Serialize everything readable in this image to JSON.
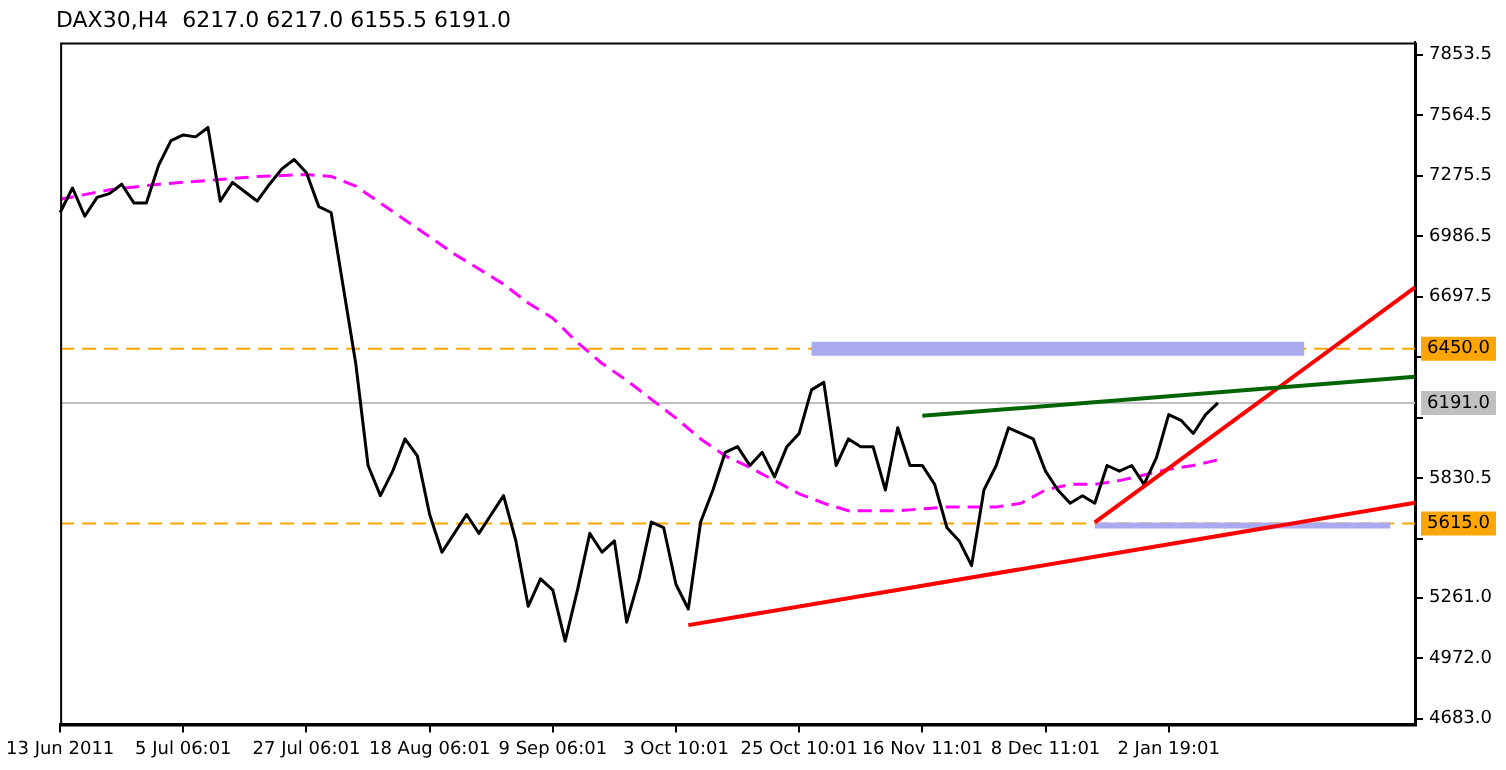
{
  "chart_data": {
    "type": "line",
    "title": "DAX30,H4  6217.0 6217.0 6155.5 6191.0",
    "categories": [
      "13 Jun 2011",
      null,
      null,
      null,
      null,
      null,
      null,
      null,
      null,
      null,
      "5 Jul 06:01",
      null,
      null,
      null,
      null,
      null,
      null,
      null,
      null,
      null,
      "27 Jul 06:01",
      null,
      null,
      null,
      null,
      null,
      null,
      null,
      null,
      null,
      "18 Aug 06:01",
      null,
      null,
      null,
      null,
      null,
      null,
      null,
      null,
      null,
      "9 Sep 06:01",
      null,
      null,
      null,
      null,
      null,
      null,
      null,
      null,
      null,
      "3 Oct 10:01",
      null,
      null,
      null,
      null,
      null,
      null,
      null,
      null,
      null,
      "25 Oct 10:01",
      null,
      null,
      null,
      null,
      null,
      null,
      null,
      null,
      null,
      "16 Nov 11:01",
      null,
      null,
      null,
      null,
      null,
      null,
      null,
      null,
      null,
      "8 Dec 11:01",
      null,
      null,
      null,
      null,
      null,
      null,
      null,
      null,
      null,
      "2 Jan 19:01",
      null,
      null,
      null,
      null,
      null,
      null,
      null,
      null,
      null,
      null,
      null,
      null,
      null,
      null,
      null,
      null,
      null,
      null,
      null,
      null
    ],
    "series": [
      {
        "color": "#000000",
        "line_style": "solid",
        "values": [
          7100,
          7217,
          7082,
          7172,
          7190,
          7235,
          7145,
          7145,
          7326,
          7443,
          7470,
          7461,
          7506,
          7154,
          7244,
          7199,
          7154,
          7235,
          7308,
          7353,
          7290,
          7128,
          7100,
          6740,
          6379,
          5892,
          5748,
          5865,
          6019,
          5938,
          5658,
          5478,
          5568,
          5658,
          5568,
          5658,
          5748,
          5532,
          5220,
          5351,
          5297,
          5054,
          5297,
          5568,
          5478,
          5532,
          5144,
          5351,
          5622,
          5595,
          5324,
          5207,
          5622,
          5775,
          5955,
          5982,
          5892,
          5955,
          5838,
          5982,
          6045,
          6253,
          6289,
          5892,
          6019,
          5982,
          5982,
          5775,
          6072,
          5892,
          5892,
          5802,
          5595,
          5532,
          5414,
          5775,
          5892,
          6072,
          6045,
          6019,
          5865,
          5775,
          5712,
          5748,
          5712,
          5892,
          5865,
          5892,
          5802,
          5928,
          6135,
          6108,
          6045,
          6135,
          6191,
          null,
          null,
          null,
          null,
          null,
          null,
          null,
          null,
          null,
          null,
          null,
          null,
          null,
          null,
          null,
          null
        ]
      },
      {
        "color": "#ff00ff",
        "line_style": "dashed",
        "values": [
          7163,
          null,
          null,
          null,
          7208,
          null,
          null,
          null,
          7235,
          null,
          null,
          null,
          7253,
          null,
          null,
          null,
          7272,
          null,
          null,
          null,
          7281,
          null,
          7272,
          null,
          7226,
          null,
          7145,
          null,
          7064,
          null,
          6983,
          null,
          6902,
          null,
          6830,
          null,
          6758,
          null,
          6668,
          null,
          6595,
          null,
          6479,
          null,
          6379,
          null,
          6298,
          null,
          6208,
          null,
          6118,
          null,
          6019,
          null,
          5938,
          null,
          5883,
          null,
          5820,
          null,
          5757,
          null,
          5712,
          null,
          5676,
          null,
          5676,
          null,
          5676,
          null,
          5685,
          null,
          5694,
          null,
          5694,
          null,
          5694,
          null,
          5712,
          null,
          5775,
          null,
          5802,
          null,
          5802,
          null,
          5820,
          null,
          5847,
          null,
          5874,
          null,
          5892,
          null,
          5919,
          null,
          null,
          null,
          null,
          null,
          null,
          null,
          null,
          null,
          null,
          null,
          null,
          null,
          null,
          null,
          null
        ]
      },
      {
        "color": "#006400",
        "line_style": "solid",
        "values": [
          null,
          null,
          null,
          null,
          null,
          null,
          null,
          null,
          null,
          null,
          null,
          null,
          null,
          null,
          null,
          null,
          null,
          null,
          null,
          null,
          null,
          null,
          null,
          null,
          null,
          null,
          null,
          null,
          null,
          null,
          null,
          null,
          null,
          null,
          null,
          null,
          null,
          null,
          null,
          null,
          null,
          null,
          null,
          null,
          null,
          null,
          null,
          null,
          null,
          null,
          null,
          null,
          null,
          null,
          null,
          null,
          null,
          null,
          null,
          null,
          null,
          null,
          null,
          null,
          null,
          null,
          null,
          null,
          null,
          null,
          6129,
          null,
          null,
          null,
          null,
          null,
          null,
          null,
          null,
          null,
          null,
          null,
          null,
          null,
          null,
          null,
          null,
          null,
          null,
          null,
          null,
          null,
          null,
          null,
          null,
          null,
          null,
          null,
          null,
          null,
          null,
          null,
          null,
          null,
          null,
          null,
          null,
          null,
          null,
          null,
          6316
        ]
      },
      {
        "color": "#ff0000",
        "line_style": "solid",
        "values": [
          null,
          null,
          null,
          null,
          null,
          null,
          null,
          null,
          null,
          null,
          null,
          null,
          null,
          null,
          null,
          null,
          null,
          null,
          null,
          null,
          null,
          null,
          null,
          null,
          null,
          null,
          null,
          null,
          null,
          null,
          null,
          null,
          null,
          null,
          null,
          null,
          null,
          null,
          null,
          null,
          null,
          null,
          null,
          null,
          null,
          null,
          null,
          null,
          null,
          null,
          null,
          5130,
          null,
          null,
          null,
          null,
          null,
          null,
          null,
          null,
          null,
          null,
          null,
          null,
          null,
          null,
          null,
          null,
          null,
          null,
          null,
          null,
          null,
          null,
          null,
          null,
          null,
          null,
          null,
          null,
          null,
          null,
          null,
          null,
          null,
          null,
          null,
          null,
          null,
          null,
          null,
          null,
          null,
          null,
          null,
          null,
          null,
          null,
          null,
          null,
          null,
          null,
          null,
          null,
          null,
          null,
          null,
          null,
          null,
          null,
          5714
        ]
      },
      {
        "color": "#ff0000",
        "line_style": "solid",
        "values": [
          null,
          null,
          null,
          null,
          null,
          null,
          null,
          null,
          null,
          null,
          null,
          null,
          null,
          null,
          null,
          null,
          null,
          null,
          null,
          null,
          null,
          null,
          null,
          null,
          null,
          null,
          null,
          null,
          null,
          null,
          null,
          null,
          null,
          null,
          null,
          null,
          null,
          null,
          null,
          null,
          null,
          null,
          null,
          null,
          null,
          null,
          null,
          null,
          null,
          null,
          null,
          null,
          null,
          null,
          null,
          null,
          null,
          null,
          null,
          null,
          null,
          null,
          null,
          null,
          null,
          null,
          null,
          null,
          null,
          null,
          null,
          null,
          null,
          null,
          null,
          null,
          null,
          null,
          null,
          null,
          null,
          null,
          null,
          null,
          5620,
          null,
          null,
          null,
          null,
          null,
          null,
          null,
          null,
          null,
          null,
          null,
          null,
          null,
          null,
          null,
          null,
          null,
          null,
          null,
          null,
          null,
          null,
          null,
          null,
          null,
          6742
        ]
      },
      {
        "color": "#aaaaf0",
        "line_style": "solid",
        "values": [
          null,
          null,
          null,
          null,
          null,
          null,
          null,
          null,
          null,
          null,
          null,
          null,
          null,
          null,
          null,
          null,
          null,
          null,
          null,
          null,
          null,
          null,
          null,
          null,
          null,
          null,
          null,
          null,
          null,
          null,
          null,
          null,
          null,
          null,
          null,
          null,
          null,
          null,
          null,
          null,
          null,
          null,
          null,
          null,
          null,
          null,
          null,
          null,
          null,
          null,
          null,
          null,
          null,
          null,
          null,
          null,
          null,
          null,
          null,
          null,
          null,
          6450,
          null,
          null,
          null,
          null,
          null,
          null,
          null,
          null,
          null,
          null,
          null,
          null,
          null,
          null,
          null,
          null,
          null,
          null,
          null,
          null,
          null,
          null,
          null,
          null,
          null,
          null,
          null,
          null,
          null,
          null,
          null,
          null,
          null,
          null,
          null,
          null,
          null,
          null,
          null,
          6450,
          null,
          null,
          null,
          null,
          null,
          null,
          null,
          null,
          null
        ]
      },
      {
        "color": "#aaaaf0",
        "line_style": "solid",
        "values": [
          null,
          null,
          null,
          null,
          null,
          null,
          null,
          null,
          null,
          null,
          null,
          null,
          null,
          null,
          null,
          null,
          null,
          null,
          null,
          null,
          null,
          null,
          null,
          null,
          null,
          null,
          null,
          null,
          null,
          null,
          null,
          null,
          null,
          null,
          null,
          null,
          null,
          null,
          null,
          null,
          null,
          null,
          null,
          null,
          null,
          null,
          null,
          null,
          null,
          null,
          null,
          null,
          null,
          null,
          null,
          null,
          null,
          null,
          null,
          null,
          null,
          null,
          null,
          null,
          null,
          null,
          null,
          null,
          null,
          null,
          null,
          null,
          null,
          null,
          null,
          null,
          null,
          null,
          null,
          null,
          null,
          null,
          null,
          null,
          5606,
          null,
          null,
          null,
          null,
          null,
          null,
          null,
          null,
          null,
          null,
          null,
          null,
          null,
          null,
          null,
          null,
          null,
          null,
          null,
          null,
          null,
          null,
          null,
          5606,
          null,
          null
        ]
      }
    ],
    "ylim": [
      4656,
      7912
    ],
    "yticks": [
      {
        "value": 4683,
        "label": "4683.0"
      },
      {
        "value": 4972,
        "label": "4972.0"
      },
      {
        "value": 5261,
        "label": "5261.0"
      },
      {
        "value": 5541.5,
        "label": null
      },
      {
        "value": 5830.5,
        "label": "5830.5"
      },
      {
        "value": 6119.5,
        "label": null
      },
      {
        "value": 6408.5,
        "label": null
      },
      {
        "value": 6697.5,
        "label": "6697.5"
      },
      {
        "value": 6986.5,
        "label": "6986.5"
      },
      {
        "value": 7275.5,
        "label": "7275.5"
      },
      {
        "value": 7564.5,
        "label": "7564.5"
      },
      {
        "value": 7853.5,
        "label": "7853.5"
      }
    ],
    "ref_lines": [
      {
        "axis": "y",
        "value": 6450,
        "label": "6450.0",
        "color": "#ffa500",
        "line_style": "dashed"
      },
      {
        "axis": "y",
        "value": 5615,
        "label": "5615.0",
        "color": "#ffa500",
        "line_style": "dashed"
      },
      {
        "axis": "y",
        "value": 6191,
        "label": "6191.0",
        "color": "#c0c0c0",
        "line_style": "solid"
      }
    ],
    "grid": false,
    "legend": false,
    "marker": "none"
  }
}
